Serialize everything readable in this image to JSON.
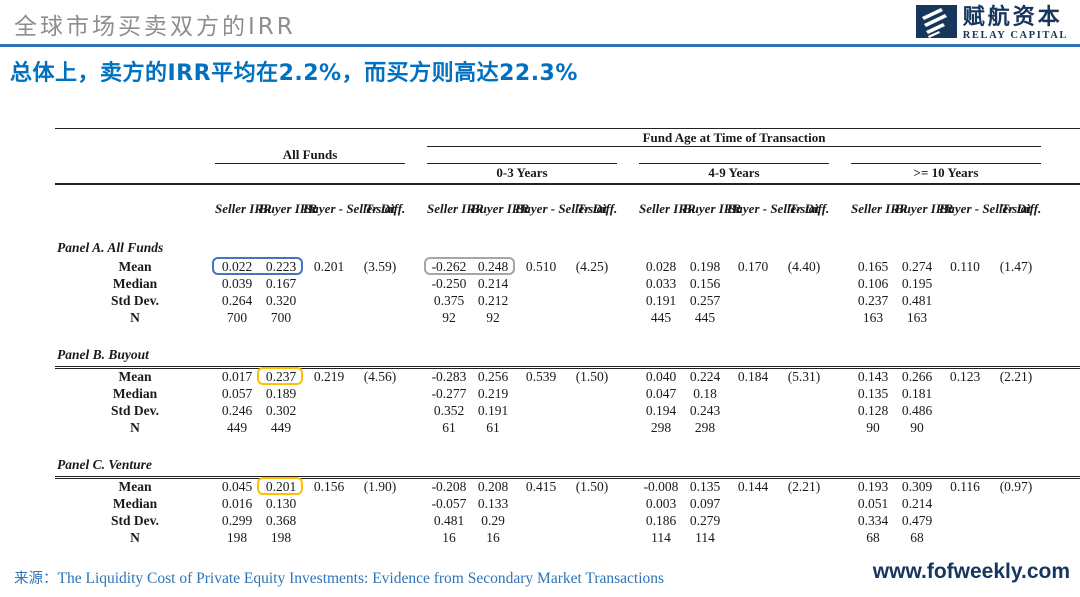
{
  "header": {
    "title": "全球市场买卖双方的IRR",
    "subtitle": "总体上，卖方的IRR平均在2.2%，而买方则高达22.3%"
  },
  "logo": {
    "cn": "赋航资本",
    "en": "RELAY CAPITAL"
  },
  "table": {
    "group_headers": {
      "fund_age": "Fund Age at Time of Transaction",
      "all_funds": "All Funds",
      "age_groups": [
        "0-3 Years",
        "4-9 Years",
        ">= 10 Years"
      ]
    },
    "col_headers": [
      "Seller\nIRR",
      "Buyer\nIRR",
      "Buyer -\nSeller\nDiff.",
      "T-stat"
    ],
    "panels": [
      {
        "label": "Panel A. All Funds",
        "rows": [
          {
            "label": "Mean",
            "groups": [
              [
                "0.022",
                "0.223",
                "0.201",
                "(3.59)"
              ],
              [
                "-0.262",
                "0.248",
                "0.510",
                "(4.25)"
              ],
              [
                "0.028",
                "0.198",
                "0.170",
                "(4.40)"
              ],
              [
                "0.165",
                "0.274",
                "0.110",
                "(1.47)"
              ]
            ]
          },
          {
            "label": "Median",
            "groups": [
              [
                "0.039",
                "0.167",
                "",
                ""
              ],
              [
                "-0.250",
                "0.214",
                "",
                ""
              ],
              [
                "0.033",
                "0.156",
                "",
                ""
              ],
              [
                "0.106",
                "0.195",
                "",
                ""
              ]
            ]
          },
          {
            "label": "Std Dev.",
            "groups": [
              [
                "0.264",
                "0.320",
                "",
                ""
              ],
              [
                "0.375",
                "0.212",
                "",
                ""
              ],
              [
                "0.191",
                "0.257",
                "",
                ""
              ],
              [
                "0.237",
                "0.481",
                "",
                ""
              ]
            ]
          },
          {
            "label": "N",
            "groups": [
              [
                "700",
                "700",
                "",
                ""
              ],
              [
                "92",
                "92",
                "",
                ""
              ],
              [
                "445",
                "445",
                "",
                ""
              ],
              [
                "163",
                "163",
                "",
                ""
              ]
            ]
          }
        ]
      },
      {
        "label": "Panel B. Buyout",
        "rows": [
          {
            "label": "Mean",
            "groups": [
              [
                "0.017",
                "0.237",
                "0.219",
                "(4.56)"
              ],
              [
                "-0.283",
                "0.256",
                "0.539",
                "(1.50)"
              ],
              [
                "0.040",
                "0.224",
                "0.184",
                "(5.31)"
              ],
              [
                "0.143",
                "0.266",
                "0.123",
                "(2.21)"
              ]
            ]
          },
          {
            "label": "Median",
            "groups": [
              [
                "0.057",
                "0.189",
                "",
                ""
              ],
              [
                "-0.277",
                "0.219",
                "",
                ""
              ],
              [
                "0.047",
                "0.18",
                "",
                ""
              ],
              [
                "0.135",
                "0.181",
                "",
                ""
              ]
            ]
          },
          {
            "label": "Std Dev.",
            "groups": [
              [
                "0.246",
                "0.302",
                "",
                ""
              ],
              [
                "0.352",
                "0.191",
                "",
                ""
              ],
              [
                "0.194",
                "0.243",
                "",
                ""
              ],
              [
                "0.128",
                "0.486",
                "",
                ""
              ]
            ]
          },
          {
            "label": "N",
            "groups": [
              [
                "449",
                "449",
                "",
                ""
              ],
              [
                "61",
                "61",
                "",
                ""
              ],
              [
                "298",
                "298",
                "",
                ""
              ],
              [
                "90",
                "90",
                "",
                ""
              ]
            ]
          }
        ]
      },
      {
        "label": "Panel C. Venture",
        "rows": [
          {
            "label": "Mean",
            "groups": [
              [
                "0.045",
                "0.201",
                "0.156",
                "(1.90)"
              ],
              [
                "-0.208",
                "0.208",
                "0.415",
                "(1.50)"
              ],
              [
                "-0.008",
                "0.135",
                "0.144",
                "(2.21)"
              ],
              [
                "0.193",
                "0.309",
                "0.116",
                "(0.97)"
              ]
            ]
          },
          {
            "label": "Median",
            "groups": [
              [
                "0.016",
                "0.130",
                "",
                ""
              ],
              [
                "-0.057",
                "0.133",
                "",
                ""
              ],
              [
                "0.003",
                "0.097",
                "",
                ""
              ],
              [
                "0.051",
                "0.214",
                "",
                ""
              ]
            ]
          },
          {
            "label": "Std Dev.",
            "groups": [
              [
                "0.299",
                "0.368",
                "",
                ""
              ],
              [
                "0.481",
                "0.29",
                "",
                ""
              ],
              [
                "0.186",
                "0.279",
                "",
                ""
              ],
              [
                "0.334",
                "0.479",
                "",
                ""
              ]
            ]
          },
          {
            "label": "N",
            "groups": [
              [
                "198",
                "198",
                "",
                ""
              ],
              [
                "16",
                "16",
                "",
                ""
              ],
              [
                "114",
                "114",
                "",
                ""
              ],
              [
                "68",
                "68",
                "",
                ""
              ]
            ]
          }
        ]
      }
    ],
    "highlights": [
      {
        "panel": 0,
        "row": 0,
        "group": 0,
        "start": 0,
        "span": 2,
        "color": "#4472c4"
      },
      {
        "panel": 0,
        "row": 0,
        "group": 1,
        "start": 0,
        "span": 2,
        "color": "#a6a6a6"
      },
      {
        "panel": 1,
        "row": 0,
        "group": 0,
        "start": 1,
        "span": 1,
        "color": "#ffc000"
      },
      {
        "panel": 2,
        "row": 0,
        "group": 0,
        "start": 1,
        "span": 1,
        "color": "#ffc000"
      }
    ]
  },
  "footer": {
    "source_label": "来源：",
    "source_text": "The Liquidity Cost of Private Equity Investments: Evidence from Secondary Market Transactions",
    "url": "www.fofweekly.com"
  }
}
